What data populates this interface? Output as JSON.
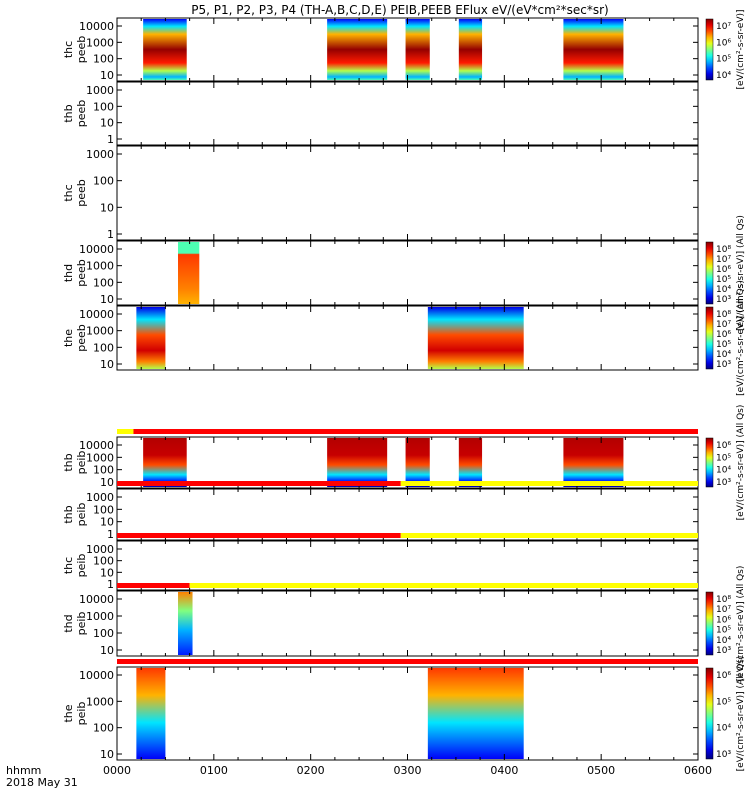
{
  "title": "P5, P1, P2, P3, P4 (TH-A,B,C,D,E) PEIB,PEEB EFlux eV/(eV*cm²*sec*sr)",
  "x_axis": {
    "label_line1": "hhmm",
    "label_line2": "2018 May 31",
    "ticks": [
      "0000",
      "0100",
      "0200",
      "0300",
      "0400",
      "0500",
      "0600"
    ]
  },
  "colorbars": [
    {
      "panel": 0,
      "ticks": [
        "10⁷",
        "10⁶",
        "10⁵",
        "10⁴"
      ],
      "label": "[eV/(cm²-s-sr-eV)]"
    },
    {
      "panel": 3,
      "ticks": [
        "10⁸",
        "10⁷",
        "10⁶",
        "10⁵",
        "10⁴",
        "10³"
      ],
      "label": "[eV/(cm²-s-sr-eV)] (All Qs)"
    },
    {
      "panel": 4,
      "ticks": [
        "10⁸",
        "10⁷",
        "10⁶",
        "10⁵",
        "10⁴",
        "10³"
      ],
      "label": "[eV/(cm²-s-sr-eV)] (All Qs)"
    },
    {
      "panel": 5,
      "ticks": [
        "10⁶",
        "10⁵",
        "10⁴",
        "10³"
      ],
      "label": "[eV/(cm²-s-sr-eV)] (All Qs)"
    },
    {
      "panel": 8,
      "ticks": [
        "10⁸",
        "10⁷",
        "10⁶",
        "10⁵",
        "10⁴",
        "10³"
      ],
      "label": "[eV/(cm²-s-sr-eV)] (All Qs)"
    },
    {
      "panel": 9,
      "ticks": [
        "10⁶",
        "10⁵",
        "10⁴",
        "10³"
      ],
      "label": "[eV/(cm²-s-sr-eV)] (All Qs)"
    }
  ],
  "chart_data": {
    "type": "heatmap",
    "title": "P5, P1, P2, P3, P4 (TH-A,B,C,D,E) PEIB,PEEB EFlux eV/(eV*cm²*sec*sr)",
    "xlabel": "hhmm",
    "xlim": [
      "0000",
      "0600"
    ],
    "panels": [
      {
        "ylabel_line1": "thc",
        "ylabel_line2": "peeb",
        "yscale": "log",
        "ylim": [
          7,
          30000
        ],
        "yticks": [
          "10000",
          "1000",
          "100",
          "10"
        ],
        "intervals": [
          [
            0.27,
            0.72
          ],
          [
            2.17,
            2.79
          ],
          [
            2.98,
            3.23
          ],
          [
            3.53,
            3.77
          ],
          [
            4.61,
            5.23
          ]
        ],
        "kind": "electron"
      },
      {
        "ylabel_line1": "thb",
        "ylabel_line2": "peeb",
        "yscale": "log",
        "ylim": [
          1,
          1500
        ],
        "yticks": [
          "1000",
          "100",
          "10",
          "1"
        ],
        "intervals": []
      },
      {
        "ylabel_line1": "thc",
        "ylabel_line2": "peeb",
        "yscale": "log",
        "ylim": [
          1,
          1500
        ],
        "yticks": [
          "1000",
          "100",
          "10",
          "1"
        ],
        "intervals": []
      },
      {
        "ylabel_line1": "thd",
        "ylabel_line2": "peeb",
        "yscale": "log",
        "ylim": [
          7,
          30000
        ],
        "yticks": [
          "10000",
          "1000",
          "100",
          "10"
        ],
        "intervals": [
          [
            0.63,
            0.85
          ]
        ],
        "kind": "thd"
      },
      {
        "ylabel_line1": "the",
        "ylabel_line2": "peeb",
        "yscale": "log",
        "ylim": [
          7,
          30000
        ],
        "yticks": [
          "10000",
          "1000",
          "100",
          "10"
        ],
        "intervals": [
          [
            0.2,
            0.5
          ],
          [
            3.21,
            4.2
          ]
        ],
        "kind": "electron2"
      },
      {
        "ylabel_line1": "thb",
        "ylabel_line2": "peib",
        "yscale": "log",
        "ylim": [
          7,
          30000
        ],
        "yticks": [
          "10000",
          "1000",
          "100",
          "10"
        ],
        "intervals": [
          [
            0.27,
            0.72
          ],
          [
            2.17,
            2.79
          ],
          [
            2.98,
            3.23
          ],
          [
            3.53,
            3.77
          ],
          [
            4.61,
            5.23
          ]
        ],
        "kind": "ion"
      },
      {
        "ylabel_line1": "thb",
        "ylabel_line2": "peib",
        "yscale": "log",
        "ylim": [
          1,
          1500
        ],
        "yticks": [
          "1000",
          "100",
          "10",
          "1"
        ],
        "intervals": []
      },
      {
        "ylabel_line1": "thc",
        "ylabel_line2": "peib",
        "yscale": "log",
        "ylim": [
          1,
          1500
        ],
        "yticks": [
          "1000",
          "100",
          "10",
          "1"
        ],
        "intervals": []
      },
      {
        "ylabel_line1": "thd",
        "ylabel_line2": "peib",
        "yscale": "log",
        "ylim": [
          7,
          30000
        ],
        "yticks": [
          "10000",
          "1000",
          "100",
          "10"
        ],
        "intervals": [
          [
            0.63,
            0.78
          ]
        ],
        "kind": "ion_thd"
      },
      {
        "ylabel_line1": "the",
        "ylabel_line2": "peib",
        "yscale": "log",
        "ylim": [
          7,
          30000
        ],
        "yticks": [
          "10000",
          "1000",
          "100",
          "10"
        ],
        "intervals": [
          [
            0.2,
            0.5
          ],
          [
            3.21,
            4.2
          ]
        ],
        "kind": "ion2"
      }
    ],
    "mode_bars": [
      {
        "above_panel": 5,
        "segments": [
          {
            "x0": 0.0,
            "x1": 0.17,
            "color": "#ffff00"
          },
          {
            "x0": 0.17,
            "x1": 6.0,
            "color": "#ff0000"
          }
        ]
      },
      {
        "above_panel": 6,
        "segments": [
          {
            "x0": 0.0,
            "x1": 2.93,
            "color": "#ff0000"
          },
          {
            "x0": 2.93,
            "x1": 6.0,
            "color": "#ffff00"
          }
        ]
      },
      {
        "above_panel": 7,
        "segments": [
          {
            "x0": 0.0,
            "x1": 2.93,
            "color": "#ff0000"
          },
          {
            "x0": 2.93,
            "x1": 6.0,
            "color": "#ffff00"
          }
        ]
      },
      {
        "above_panel": 8,
        "segments": [
          {
            "x0": 0.0,
            "x1": 0.75,
            "color": "#ff0000"
          },
          {
            "x0": 0.75,
            "x1": 6.0,
            "color": "#ffff00"
          }
        ]
      },
      {
        "above_panel": 9,
        "segments": [
          {
            "x0": 0.0,
            "x1": 6.0,
            "color": "#ff0000"
          }
        ]
      }
    ]
  }
}
